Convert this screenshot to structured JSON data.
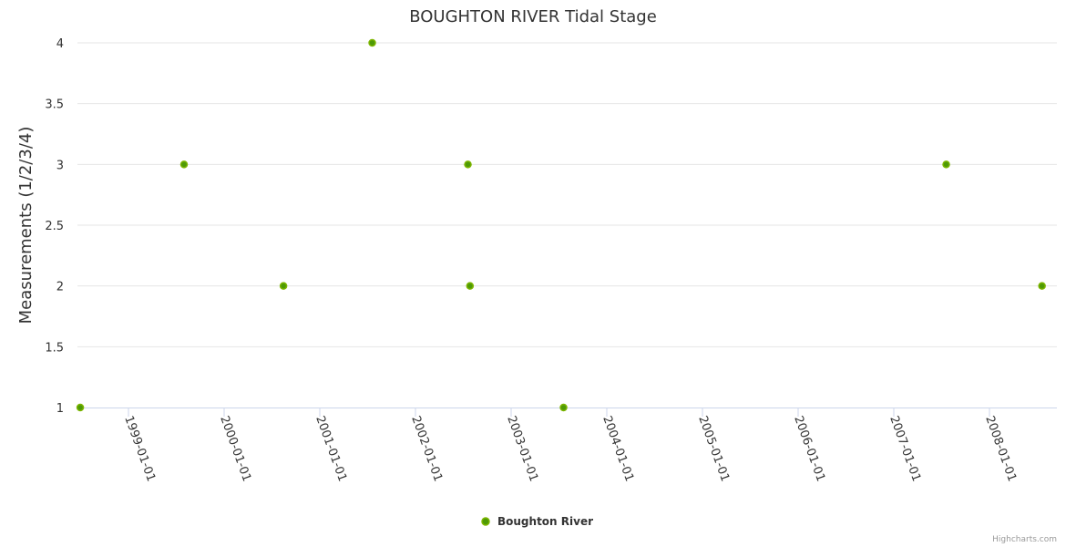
{
  "chart_data": {
    "type": "scatter",
    "title": "BOUGHTON RIVER Tidal Stage",
    "xlabel": "",
    "ylabel": "Measurements (1/2/3/4)",
    "ylim": [
      1,
      4
    ],
    "yticks": [
      "1",
      "1.5",
      "2",
      "2.5",
      "3",
      "3.5",
      "4"
    ],
    "xlim": [
      "1998-05-01",
      "2008-08-01"
    ],
    "xticks": [
      "1999-01-01",
      "2000-01-01",
      "2001-01-01",
      "2002-01-01",
      "2003-01-01",
      "2004-01-01",
      "2005-01-01",
      "2006-01-01",
      "2007-01-01",
      "2008-01-01"
    ],
    "grid": true,
    "legend": "bottom-center",
    "series": [
      {
        "name": "Boughton River",
        "color": "#4e9a06",
        "points": [
          {
            "x": "1998-07-01",
            "y": 1
          },
          {
            "x": "1999-08-01",
            "y": 3
          },
          {
            "x": "2000-08-15",
            "y": 2
          },
          {
            "x": "2001-07-20",
            "y": 4
          },
          {
            "x": "2002-07-20",
            "y": 3
          },
          {
            "x": "2002-07-28",
            "y": 2
          },
          {
            "x": "2003-07-20",
            "y": 1
          },
          {
            "x": "2007-07-20",
            "y": 3
          },
          {
            "x": "2008-07-20",
            "y": 2
          }
        ]
      }
    ]
  },
  "credit": "Highcharts.com"
}
